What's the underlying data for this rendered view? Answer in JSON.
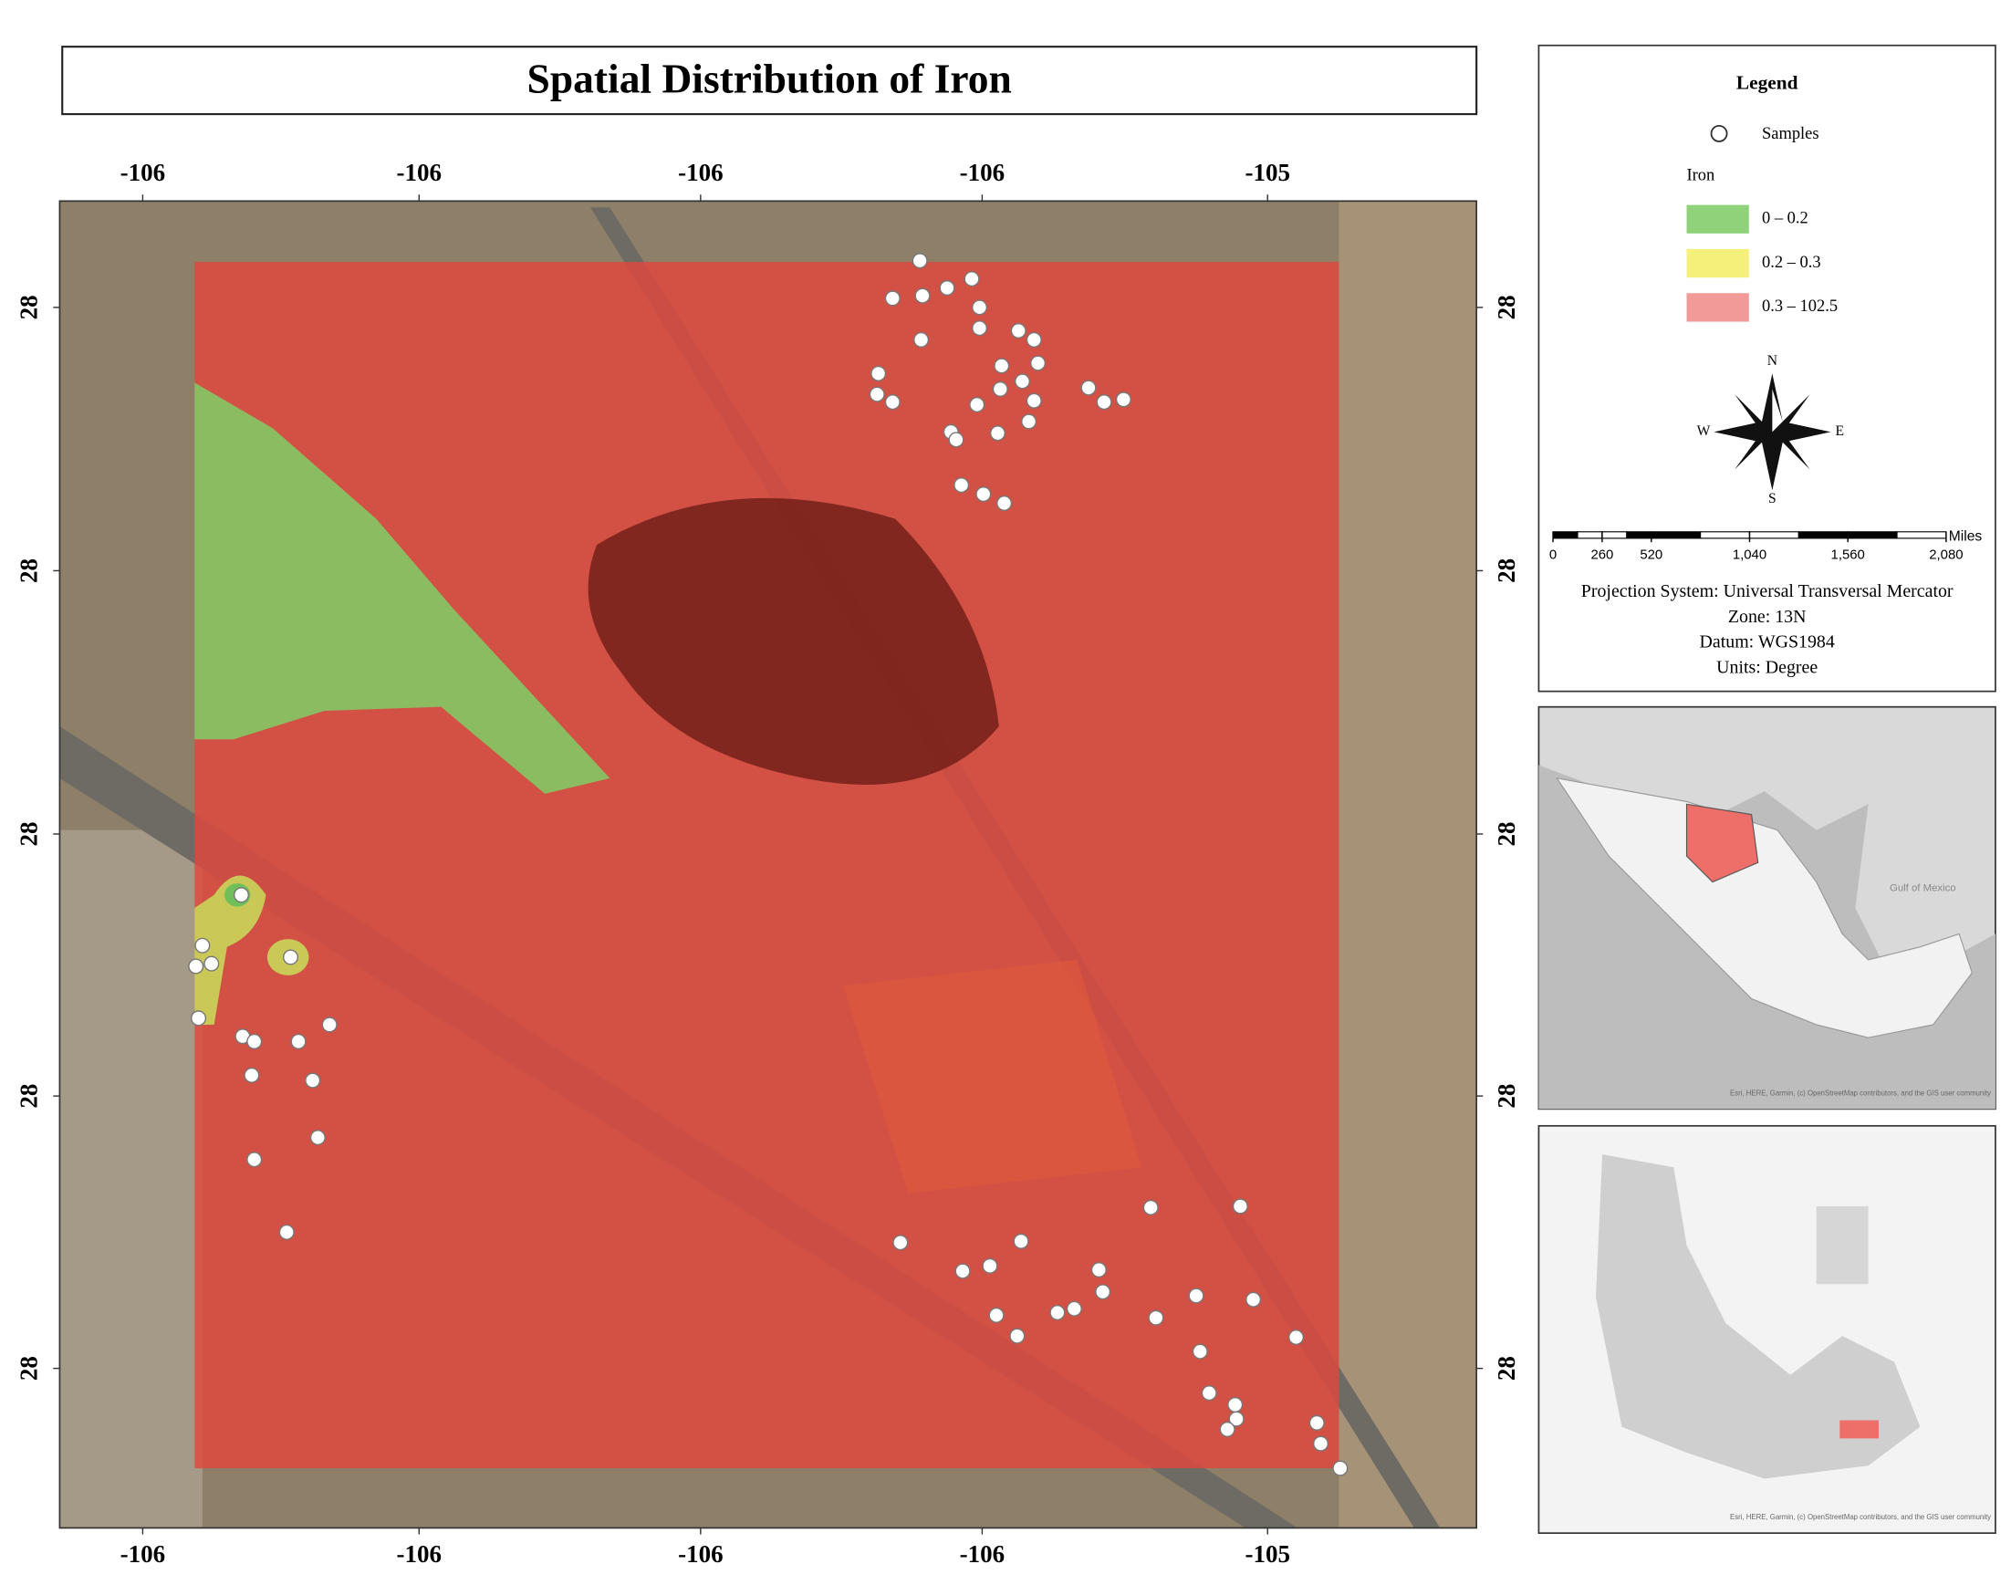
{
  "title": "Spatial Distribution of Iron",
  "axes": {
    "top": [
      -106,
      -106,
      -106,
      -106,
      -105
    ],
    "bottom": [
      -106,
      -106,
      -106,
      -106,
      -105
    ],
    "left": [
      28,
      28,
      28,
      28,
      28
    ],
    "right": [
      28,
      28,
      28,
      28,
      28
    ]
  },
  "legend": {
    "title": "Legend",
    "samples": "Samples",
    "variable": "Iron",
    "classes": [
      {
        "label": "0 – 0.2",
        "color": "#8fd27a"
      },
      {
        "label": "0.2 – 0.3",
        "color": "#f4f07a"
      },
      {
        "label": "0.3 – 102.5",
        "color": "#f29a98"
      }
    ]
  },
  "compass": {
    "n": "N",
    "s": "S",
    "e": "E",
    "w": "W"
  },
  "scale_bar": {
    "unit": "Miles",
    "ticks": [
      0,
      260,
      520,
      {
        "value": 1040,
        "label": "1,040"
      },
      {
        "value": 1560,
        "label": "1,560"
      },
      {
        "value": 2080,
        "label": "2,080"
      }
    ]
  },
  "projection": [
    "Projection System: Universal Transversal Mercator",
    "Zone: 13N",
    "Datum: WGS1984",
    "Units: Degree"
  ],
  "inset_country": {
    "sea_label": "Gulf of Mexico",
    "attribution": "Esri, HERE, Garmin, (c) OpenStreetMap contributors, and the GIS user community"
  },
  "inset_city": {
    "attribution": "Esri, HERE, Garmin, (c) OpenStreetMap contributors, and the GIS user community"
  }
}
